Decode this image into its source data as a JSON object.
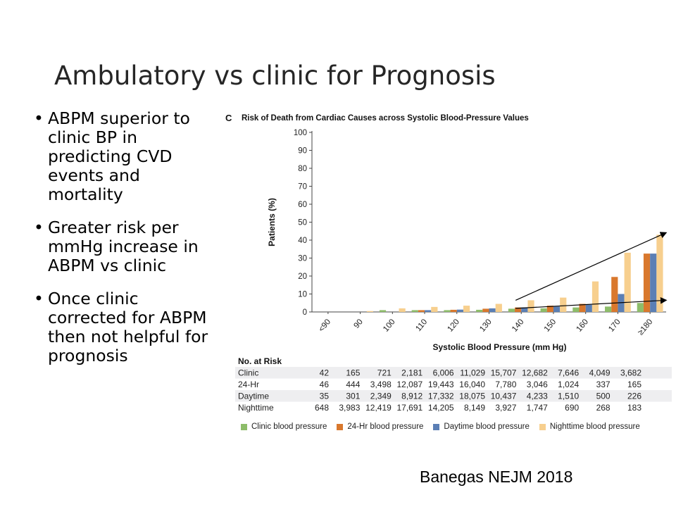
{
  "slide": {
    "title": "Ambulatory vs clinic  for Prognosis",
    "bullets": [
      "ABPM superior to clinic BP in predicting CVD events and mortality",
      "Greater risk per mmHg increase in ABPM vs clinic",
      "Once clinic corrected for ABPM then not helpful for prognosis"
    ],
    "citation": "Banegas NEJM 2018"
  },
  "chart_data": {
    "type": "bar",
    "panel_letter": "C",
    "title": "Risk of Death from Cardiac Causes across Systolic Blood-Pressure Values",
    "xlabel": "Systolic Blood Pressure (mm Hg)",
    "ylabel": "Patients (%)",
    "ylim": [
      0,
      100
    ],
    "yticks": [
      0,
      10,
      20,
      30,
      40,
      50,
      60,
      70,
      80,
      90,
      100
    ],
    "categories": [
      "<90",
      "90",
      "100",
      "110",
      "120",
      "130",
      "140",
      "150",
      "160",
      "170",
      "≥180"
    ],
    "series": [
      {
        "name": "Clinic blood pressure",
        "color": "#8dbd6a",
        "values": [
          0,
          0,
          1.0,
          1.0,
          1.0,
          1.2,
          1.8,
          2.0,
          2.5,
          3.0,
          5.0
        ]
      },
      {
        "name": "24-Hr blood pressure",
        "color": "#d9782d",
        "values": [
          0,
          0,
          0,
          1.0,
          1.2,
          1.8,
          2.5,
          3.5,
          4.5,
          19.5,
          32.5
        ]
      },
      {
        "name": "Daytime blood pressure",
        "color": "#5b7fb5",
        "values": [
          0,
          0,
          0,
          1.0,
          1.3,
          2.0,
          2.5,
          3.0,
          4.0,
          10.0,
          32.5
        ]
      },
      {
        "name": "Nighttime blood pressure",
        "color": "#f7cf8e",
        "values": [
          0,
          0.5,
          2.0,
          2.8,
          3.5,
          4.5,
          6.5,
          8.0,
          17.0,
          33.0,
          43.0
        ]
      }
    ],
    "trend_arrows": [
      {
        "from": {
          "category": "140",
          "y": 6.5
        },
        "to": {
          "category": "≥180",
          "y": 44
        }
      },
      {
        "from": {
          "category": "140",
          "y": 2
        },
        "to": {
          "category": "≥180",
          "y": 6.5
        }
      }
    ],
    "risk_table": {
      "header": "No. at Risk",
      "rows": [
        {
          "label": "Clinic",
          "values": [
            "42",
            "165",
            "721",
            "2,181",
            "6,006",
            "11,029",
            "15,707",
            "12,682",
            "7,646",
            "4,049",
            "3,682"
          ]
        },
        {
          "label": "24-Hr",
          "values": [
            "46",
            "444",
            "3,498",
            "12,087",
            "19,443",
            "16,040",
            "7,780",
            "3,046",
            "1,024",
            "337",
            "165"
          ]
        },
        {
          "label": "Daytime",
          "values": [
            "35",
            "301",
            "2,349",
            "8,912",
            "17,332",
            "18,075",
            "10,437",
            "4,233",
            "1,510",
            "500",
            "226"
          ]
        },
        {
          "label": "Nighttime",
          "values": [
            "648",
            "3,983",
            "12,419",
            "17,691",
            "14,205",
            "8,149",
            "3,927",
            "1,747",
            "690",
            "268",
            "183"
          ]
        }
      ]
    },
    "legend_position": "bottom",
    "grid": false
  }
}
